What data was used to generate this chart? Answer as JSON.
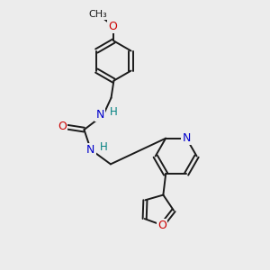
{
  "background_color": "#ececec",
  "bond_color": "#1a1a1a",
  "N_color": "#0000cc",
  "O_color": "#cc0000",
  "H_color": "#008080",
  "bond_width": 1.4,
  "figsize": [
    3.0,
    3.0
  ],
  "dpi": 100,
  "xlim": [
    0,
    10
  ],
  "ylim": [
    0,
    10
  ]
}
